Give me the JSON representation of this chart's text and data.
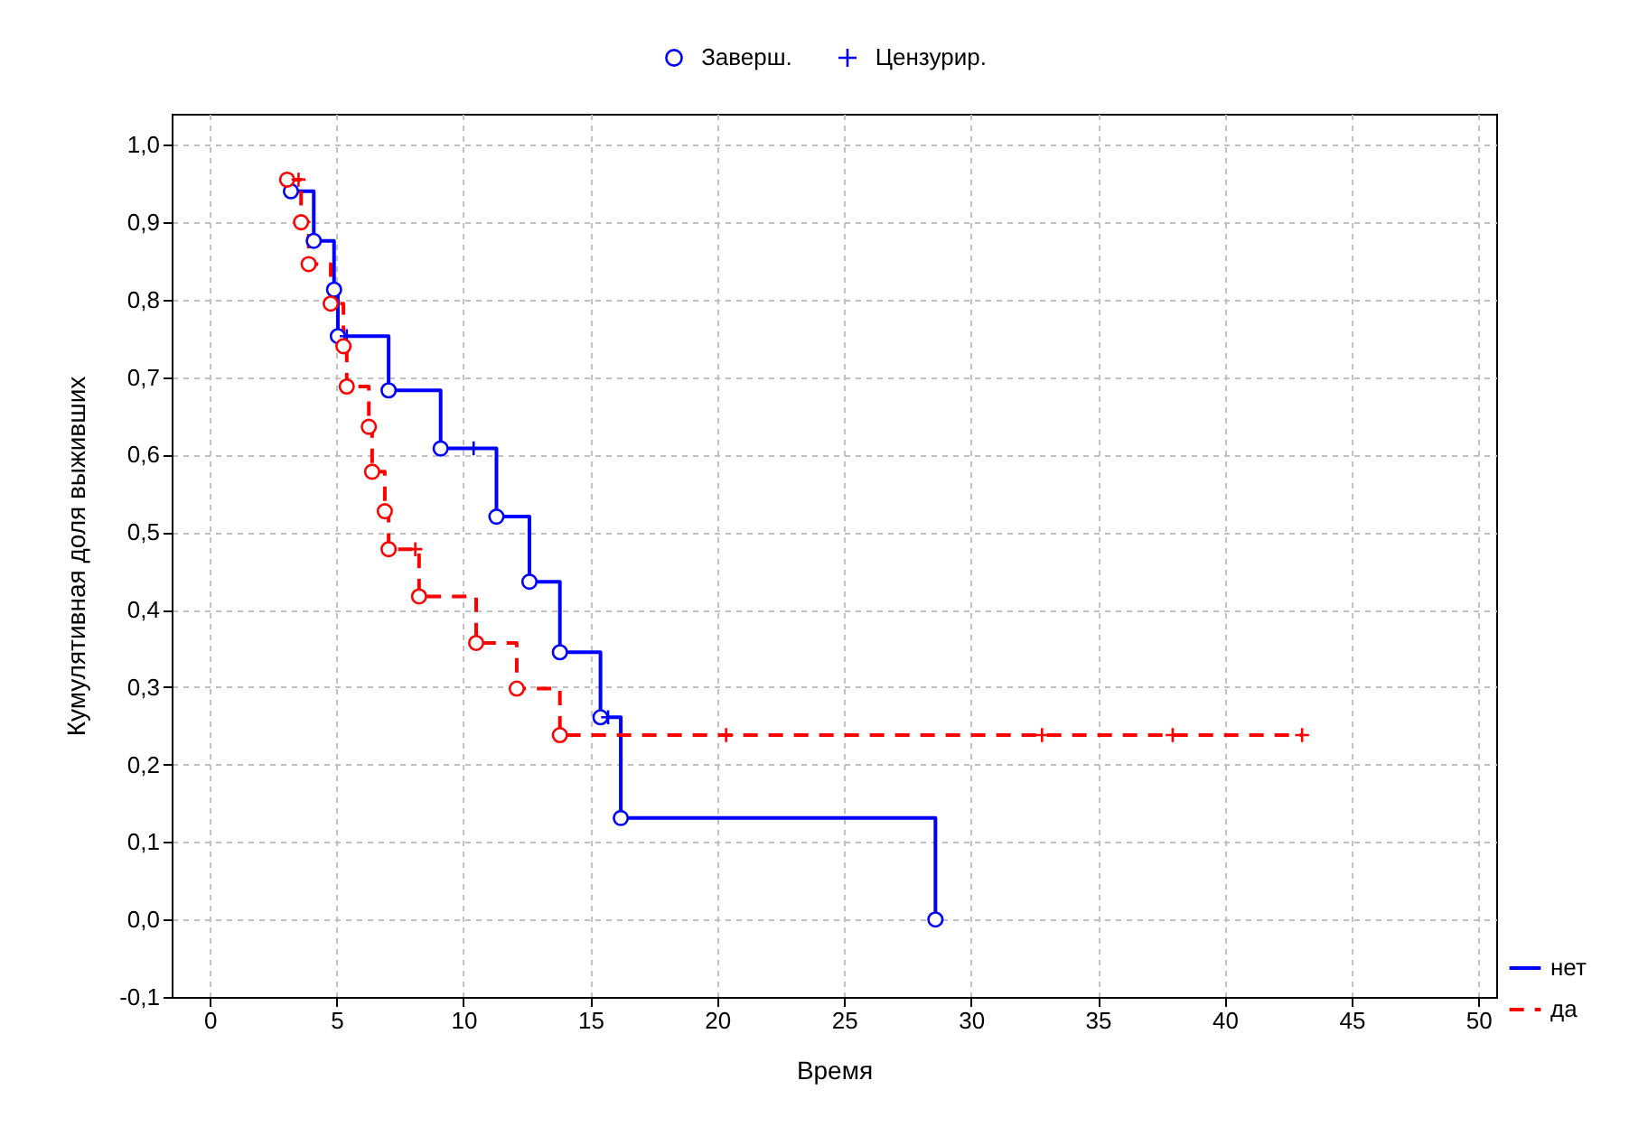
{
  "chart_data": {
    "type": "step",
    "xlabel": "Время",
    "ylabel": "Кумулятивная доля выживших",
    "xlim": [
      -1.5,
      50.7
    ],
    "ylim": [
      -0.1,
      1.04
    ],
    "xticks": [
      0,
      5,
      10,
      15,
      20,
      25,
      30,
      35,
      40,
      45,
      50
    ],
    "yticks": [
      {
        "value": -0.1,
        "label": "-0,1"
      },
      {
        "value": 0,
        "label": "0,0"
      },
      {
        "value": 0.1,
        "label": "0,1"
      },
      {
        "value": 0.2,
        "label": "0,2"
      },
      {
        "value": 0.3,
        "label": "0,3"
      },
      {
        "value": 0.4,
        "label": "0,4"
      },
      {
        "value": 0.5,
        "label": "0,5"
      },
      {
        "value": 0.6,
        "label": "0,6"
      },
      {
        "value": 0.7,
        "label": "0,7"
      },
      {
        "value": 0.8,
        "label": "0,8"
      },
      {
        "value": 0.9,
        "label": "0,9"
      },
      {
        "value": 1,
        "label": "1,0"
      }
    ],
    "grid": true,
    "legend": "top right",
    "series": [
      {
        "name": "нет",
        "type": "step",
        "color": "#0000ff",
        "line_style": "solid",
        "x": [
          3.2,
          4.1,
          4.9,
          5.05,
          5.4,
          7.05,
          9.1,
          10.4,
          11.3,
          12.6,
          13.8,
          15.4,
          15.7,
          16.2,
          28.6
        ],
        "values": [
          0.94,
          0.876,
          0.813,
          0.753,
          0.753,
          0.683,
          0.608,
          0.608,
          0.52,
          0.436,
          0.345,
          0.261,
          0.261,
          0.131,
          0.0
        ]
      },
      {
        "name": "да",
        "type": "step",
        "color": "#ff0000",
        "line_style": "dashed",
        "x": [
          3.05,
          3.5,
          3.6,
          3.9,
          4.77,
          5.27,
          5.4,
          6.27,
          6.4,
          6.9,
          7.05,
          8.1,
          8.25,
          10.5,
          12.1,
          13.8,
          20.35,
          32.8,
          37.95,
          43.05
        ],
        "values": [
          0.955,
          0.955,
          0.9,
          0.846,
          0.795,
          0.74,
          0.688,
          0.636,
          0.578,
          0.527,
          0.478,
          0.478,
          0.417,
          0.357,
          0.298,
          0.238,
          0.238,
          0.238,
          0.238,
          0.238
        ]
      },
      {
        "name": "Заверш.",
        "type": "scatter",
        "marker": "circle",
        "color": "#0000ff",
        "x": [
          3.2,
          4.1,
          4.9,
          5.05,
          7.05,
          9.1,
          11.3,
          12.6,
          13.8,
          15.4,
          16.2,
          28.6
        ],
        "values": [
          0.94,
          0.876,
          0.813,
          0.753,
          0.683,
          0.608,
          0.52,
          0.436,
          0.345,
          0.261,
          0.131,
          0.0
        ]
      },
      {
        "name": "Цензурир.",
        "type": "scatter",
        "marker": "cross",
        "color": "#0000ff",
        "x": [
          5.4,
          10.4,
          15.7
        ],
        "values": [
          0.753,
          0.608,
          0.261
        ]
      },
      {
        "type": "scatter",
        "marker": "circle",
        "color": "#ff0000",
        "x": [
          3.05,
          3.6,
          3.9,
          4.77,
          5.27,
          5.4,
          6.27,
          6.4,
          6.9,
          7.05,
          8.25,
          10.5,
          12.1,
          13.8
        ],
        "values": [
          0.955,
          0.9,
          0.846,
          0.795,
          0.74,
          0.688,
          0.636,
          0.578,
          0.527,
          0.478,
          0.417,
          0.357,
          0.298,
          0.238
        ]
      },
      {
        "type": "scatter",
        "marker": "cross",
        "color": "#ff0000",
        "x": [
          3.5,
          8.1,
          20.35,
          32.8,
          37.95,
          43.05
        ],
        "values": [
          0.955,
          0.478,
          0.238,
          0.238,
          0.238,
          0.238
        ]
      }
    ]
  }
}
